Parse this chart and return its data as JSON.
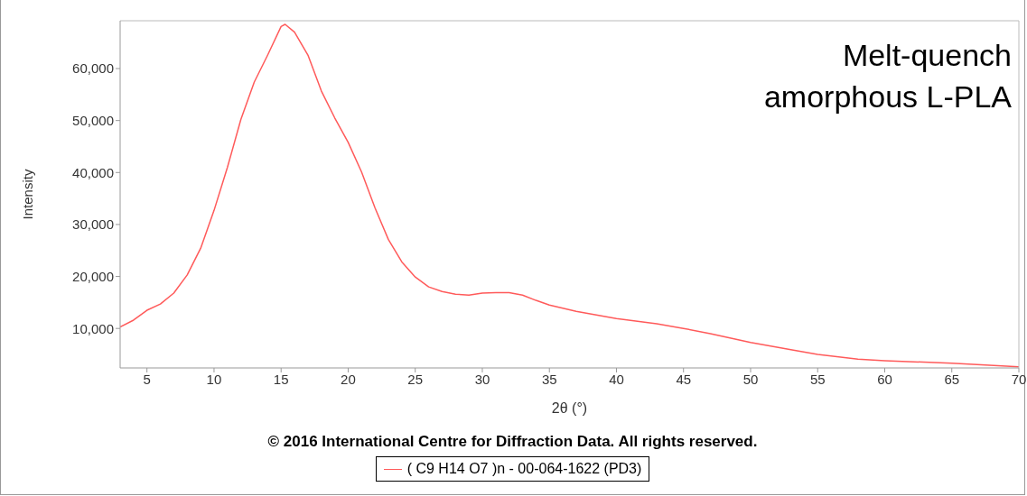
{
  "chart_data": {
    "type": "line",
    "xlabel": "2θ (°)",
    "ylabel": "Intensity",
    "legend": "bottom",
    "marker": "none",
    "annotations": [
      "Melt-quench amorphous L-PLA",
      "© 2016 International Centre for Diffraction Data. All rights reserved."
    ],
    "x": [
      3,
      4,
      5,
      6,
      7,
      8,
      9,
      10,
      11,
      12,
      13,
      14,
      15,
      15.3,
      16,
      17,
      18,
      19,
      20,
      21,
      22,
      23,
      24,
      25,
      26,
      27,
      28,
      29,
      30,
      31,
      32,
      33,
      34,
      35,
      37,
      40,
      43,
      45,
      47,
      50,
      53,
      55,
      58,
      60,
      65,
      70
    ],
    "series": [
      {
        "name": "( C9 H14 O7 )n - 00-064-1622 (PD3)",
        "color": "#ff5a5a",
        "values": [
          10300,
          11600,
          13500,
          14700,
          16800,
          20300,
          25400,
          32700,
          41000,
          50200,
          57400,
          62600,
          68100,
          68500,
          67000,
          62600,
          55700,
          50500,
          45800,
          40100,
          33200,
          27100,
          22800,
          19900,
          18000,
          17100,
          16600,
          16400,
          16800,
          16900,
          16900,
          16400,
          15400,
          14500,
          13300,
          11900,
          10900,
          10000,
          9000,
          7300,
          5900,
          5000,
          4100,
          3800,
          3300,
          2600
        ]
      }
    ],
    "xlim": [
      3,
      70
    ],
    "ylim": [
      2400,
      69200
    ],
    "xticks": [
      5,
      10,
      15,
      20,
      25,
      30,
      35,
      40,
      45,
      50,
      55,
      60,
      65,
      70
    ],
    "yticks": [
      {
        "value": 10000,
        "label": "10,000"
      },
      {
        "value": 20000,
        "label": "20,000"
      },
      {
        "value": 30000,
        "label": "30,000"
      },
      {
        "value": 40000,
        "label": "40,000"
      },
      {
        "value": 50000,
        "label": "50,000"
      },
      {
        "value": 60000,
        "label": "60,000"
      }
    ]
  }
}
